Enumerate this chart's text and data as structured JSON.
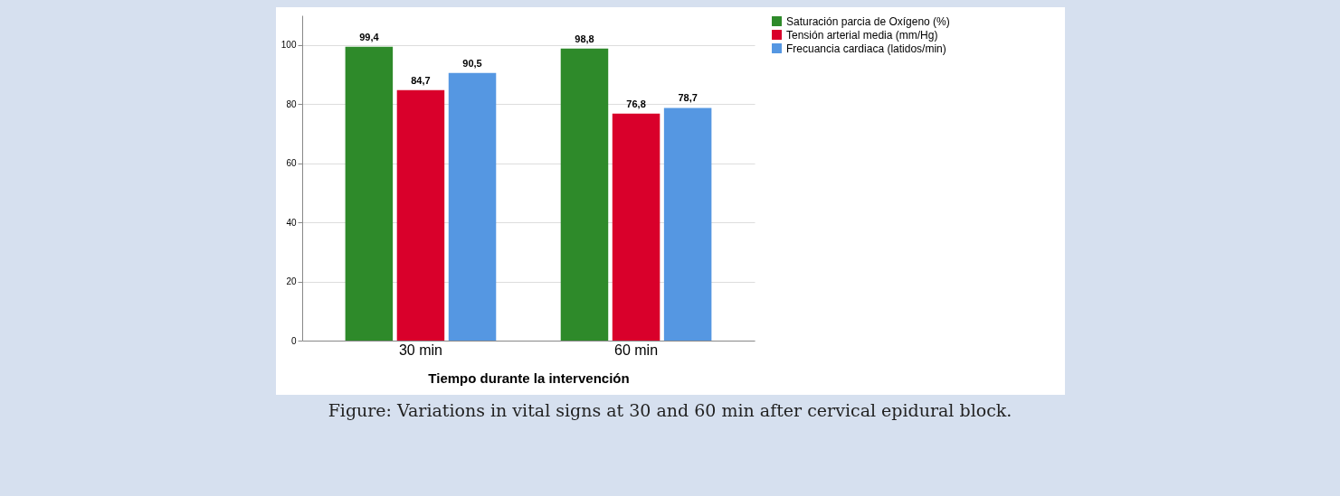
{
  "chart_data": {
    "type": "bar",
    "xlabel": "Tiempo durante la intervención",
    "categories": [
      "30 min",
      "60 min"
    ],
    "series": [
      {
        "name": "Saturación parcia de Oxígeno (%)",
        "color": "#2e8a2a",
        "values": [
          99.4,
          98.8
        ],
        "value_labels": [
          "99,4",
          "98,8"
        ]
      },
      {
        "name": "Tensión arterial media (mm/Hg)",
        "color": "#d9002b",
        "values": [
          84.7,
          76.8
        ],
        "value_labels": [
          "84,7",
          "76,8"
        ]
      },
      {
        "name": "Frecuancia cardiaca (latidos/min)",
        "color": "#5597e2",
        "values": [
          90.5,
          78.7
        ],
        "value_labels": [
          "90,5",
          "78,7"
        ]
      }
    ],
    "ylim": [
      0,
      110
    ],
    "yticks": [
      0,
      20,
      40,
      60,
      80,
      100
    ],
    "grid": "y",
    "legend": "top right",
    "annotations": [
      "Figure: Variations in vital signs at 30 and 60 min after cervical epidural block."
    ]
  }
}
